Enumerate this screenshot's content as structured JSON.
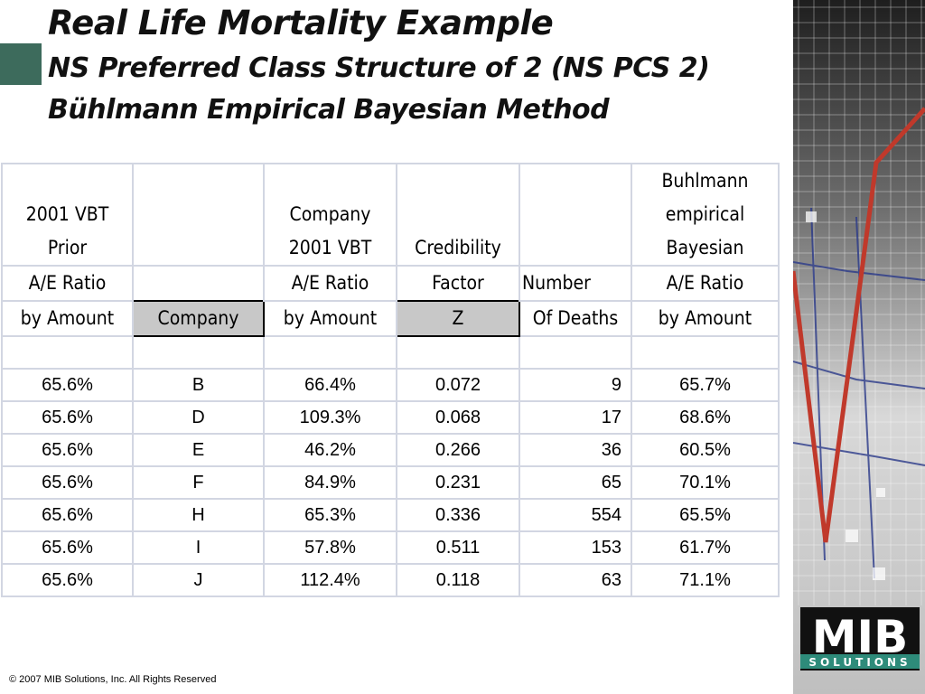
{
  "title": "Real Life Mortality Example",
  "subtitle_1": "NS Preferred Class Structure of 2 (NS PCS 2)",
  "subtitle_2": "Bühlmann Empirical Bayesian Method",
  "table": {
    "headers": [
      [
        "",
        "",
        "",
        "",
        "",
        "Buhlmann"
      ],
      [
        "2001 VBT",
        "",
        "Company",
        "",
        "",
        "empirical"
      ],
      [
        "Prior",
        "",
        "2001 VBT",
        "Credibility",
        "",
        "Bayesian"
      ],
      [
        "A/E  Ratio",
        "",
        "A/E  Ratio",
        "Factor",
        "Number",
        "A/E  Ratio"
      ],
      [
        "by Amount",
        "Company",
        "by Amount",
        "Z",
        "Of Deaths",
        "by Amount"
      ]
    ],
    "rows": [
      [
        "65.6%",
        "B",
        "66.4%",
        "0.072",
        "9",
        "65.7%"
      ],
      [
        "65.6%",
        "D",
        "109.3%",
        "0.068",
        "17",
        "68.6%"
      ],
      [
        "65.6%",
        "E",
        "46.2%",
        "0.266",
        "36",
        "60.5%"
      ],
      [
        "65.6%",
        "F",
        "84.9%",
        "0.231",
        "65",
        "70.1%"
      ],
      [
        "65.6%",
        "H",
        "65.3%",
        "0.336",
        "554",
        "65.5%"
      ],
      [
        "65.6%",
        "I",
        "57.8%",
        "0.511",
        "153",
        "61.7%"
      ],
      [
        "65.6%",
        "J",
        "112.4%",
        "0.118",
        "63",
        "71.1%"
      ]
    ]
  },
  "logo": {
    "text": "MIB",
    "subtext": "SOLUTIONS"
  },
  "footer": {
    "copyright": "© 2007 MIB Solutions, Inc. All Rights Reserved"
  },
  "colors": {
    "accent": "#3d6b5c",
    "panel": "#2a2a2a",
    "chart_line": "#c0392b",
    "grid_border": "#d2d6e2",
    "shaded_cell": "#c8c8c8"
  }
}
